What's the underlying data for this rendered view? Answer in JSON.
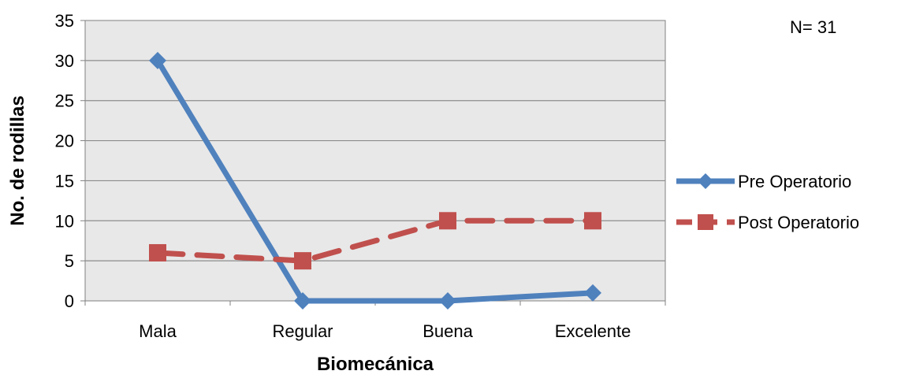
{
  "chart_data": {
    "type": "line",
    "categories": [
      "Mala",
      "Regular",
      "Buena",
      "Excelente"
    ],
    "series": [
      {
        "name": "Pre Operatorio",
        "values": [
          30,
          0,
          0,
          1
        ],
        "color": "#4F81BD",
        "marker": "diamond",
        "dash": "solid"
      },
      {
        "name": "Post Operatorio",
        "values": [
          6,
          5,
          10,
          10
        ],
        "color": "#C0504D",
        "marker": "square",
        "dash": "dashed"
      }
    ],
    "xlabel": "Biomecánica",
    "ylabel": "No. de rodillas",
    "ylim": [
      0,
      35
    ],
    "yticks": [
      0,
      5,
      10,
      15,
      20,
      25,
      30,
      35
    ],
    "grid": true,
    "legend": "right",
    "annotation": "N= 31",
    "plot_background": "#E8E8E8"
  }
}
